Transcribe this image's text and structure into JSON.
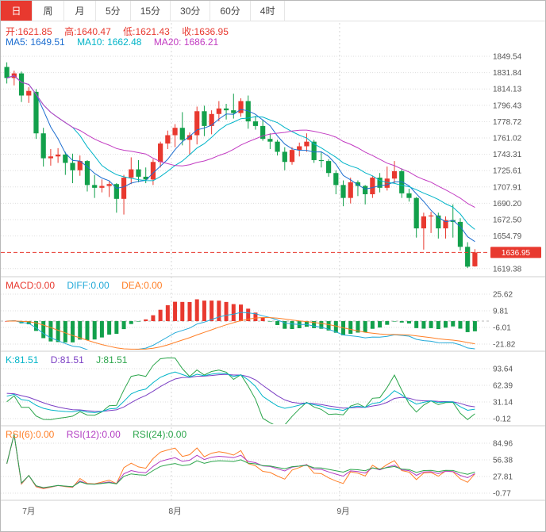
{
  "toolbar": {
    "tabs": [
      {
        "label": "日",
        "active": true
      },
      {
        "label": "周",
        "active": false
      },
      {
        "label": "月",
        "active": false
      },
      {
        "label": "5分",
        "active": false
      },
      {
        "label": "15分",
        "active": false
      },
      {
        "label": "30分",
        "active": false
      },
      {
        "label": "60分",
        "active": false
      },
      {
        "label": "4时",
        "active": false
      }
    ]
  },
  "info": {
    "ohlc_segments": [
      "开:1621.85",
      "高:1640.47",
      "低:1621.43",
      "收:1636.95"
    ],
    "ma_segments": [
      "MA5: 1649.51",
      "MA10: 1662.48",
      "MA20: 1686.21"
    ],
    "macd_segments": [
      "MACD:0.00",
      "DIFF:0.00",
      "DEA:0.00"
    ],
    "kdj_segments": [
      "K:81.51",
      "D:81.51",
      "J:81.51"
    ],
    "rsi_segments": [
      "RSI(6):0.00",
      "RSI(12):0.00",
      "RSI(24):0.00"
    ]
  },
  "chart_data": {
    "type": "candlestick",
    "title": "",
    "x_labels": [
      {
        "index": 3,
        "label": "7月",
        "grid": false
      },
      {
        "index": 23,
        "label": "8月",
        "grid": true
      },
      {
        "index": 46,
        "label": "9月",
        "grid": true
      }
    ],
    "panels": {
      "price": {
        "yticks": [
          1849.54,
          1831.84,
          1814.13,
          1796.43,
          1778.72,
          1761.02,
          1743.31,
          1725.61,
          1707.91,
          1690.2,
          1672.5,
          1654.79,
          1619.38
        ],
        "last_price": 1636.95,
        "ma_periods": [
          5,
          10,
          20
        ]
      },
      "macd": {
        "yticks": [
          25.62,
          9.81,
          -6.01,
          -21.82
        ],
        "params": [
          12,
          26,
          9
        ]
      },
      "kdj": {
        "yticks": [
          93.64,
          62.39,
          31.14,
          -0.12
        ],
        "params": [
          9,
          3,
          3
        ]
      },
      "rsi": {
        "yticks": [
          84.96,
          56.38,
          27.81,
          -0.77
        ],
        "params": [
          6,
          12,
          24
        ]
      }
    },
    "ohlc": [
      [
        1838,
        1843,
        1820,
        1826
      ],
      [
        1826,
        1834,
        1818,
        1831
      ],
      [
        1831,
        1833,
        1800,
        1807
      ],
      [
        1807,
        1816,
        1799,
        1812
      ],
      [
        1811,
        1814,
        1760,
        1766
      ],
      [
        1766,
        1772,
        1730,
        1739
      ],
      [
        1739,
        1749,
        1731,
        1741
      ],
      [
        1741,
        1750,
        1734,
        1743
      ],
      [
        1743,
        1746,
        1721,
        1734
      ],
      [
        1734,
        1744,
        1712,
        1726
      ],
      [
        1726,
        1742,
        1720,
        1736
      ],
      [
        1736,
        1737,
        1703,
        1710
      ],
      [
        1710,
        1721,
        1696,
        1707
      ],
      [
        1707,
        1716,
        1702,
        1709
      ],
      [
        1709,
        1714,
        1697,
        1711
      ],
      [
        1711,
        1712,
        1680,
        1695
      ],
      [
        1695,
        1721,
        1678,
        1718
      ],
      [
        1718,
        1740,
        1711,
        1727
      ],
      [
        1727,
        1737,
        1713,
        1719
      ],
      [
        1719,
        1729,
        1712,
        1716
      ],
      [
        1716,
        1738,
        1710,
        1735
      ],
      [
        1735,
        1757,
        1729,
        1755
      ],
      [
        1755,
        1769,
        1749,
        1764
      ],
      [
        1764,
        1776,
        1751,
        1772
      ],
      [
        1772,
        1789,
        1753,
        1759
      ],
      [
        1759,
        1767,
        1743,
        1764
      ],
      [
        1764,
        1795,
        1754,
        1790
      ],
      [
        1790,
        1796,
        1763,
        1774
      ],
      [
        1774,
        1791,
        1765,
        1787
      ],
      [
        1787,
        1801,
        1779,
        1793
      ],
      [
        1793,
        1798,
        1781,
        1791
      ],
      [
        1791,
        1809,
        1782,
        1788
      ],
      [
        1788,
        1804,
        1784,
        1801
      ],
      [
        1801,
        1807,
        1771,
        1779
      ],
      [
        1779,
        1785,
        1770,
        1774
      ],
      [
        1774,
        1781,
        1758,
        1760
      ],
      [
        1760,
        1766,
        1749,
        1757
      ],
      [
        1757,
        1759,
        1742,
        1746
      ],
      [
        1746,
        1751,
        1726,
        1735
      ],
      [
        1735,
        1751,
        1732,
        1748
      ],
      [
        1748,
        1756,
        1741,
        1752
      ],
      [
        1752,
        1766,
        1746,
        1757
      ],
      [
        1757,
        1759,
        1734,
        1737
      ],
      [
        1737,
        1746,
        1729,
        1736
      ],
      [
        1736,
        1738,
        1719,
        1723
      ],
      [
        1723,
        1726,
        1700,
        1710
      ],
      [
        1710,
        1715,
        1687,
        1696
      ],
      [
        1696,
        1718,
        1690,
        1713
      ],
      [
        1713,
        1715,
        1698,
        1709
      ],
      [
        1709,
        1710,
        1689,
        1700
      ],
      [
        1700,
        1720,
        1696,
        1718
      ],
      [
        1718,
        1723,
        1702,
        1707
      ],
      [
        1707,
        1730,
        1704,
        1717
      ],
      [
        1717,
        1736,
        1712,
        1725
      ],
      [
        1725,
        1728,
        1696,
        1701
      ],
      [
        1701,
        1706,
        1692,
        1696
      ],
      [
        1696,
        1697,
        1653,
        1663
      ],
      [
        1663,
        1680,
        1640,
        1676
      ],
      [
        1676,
        1681,
        1658,
        1677
      ],
      [
        1677,
        1680,
        1652,
        1663
      ],
      [
        1663,
        1676,
        1652,
        1672
      ],
      [
        1672,
        1689,
        1653,
        1670
      ],
      [
        1670,
        1674,
        1639,
        1643
      ],
      [
        1643,
        1648,
        1620,
        1621.5
      ],
      [
        1621.85,
        1640.47,
        1621.43,
        1636.95
      ]
    ],
    "colors": {
      "up": "#e8392f",
      "down": "#12a04b",
      "ma5": "#1d6ed0",
      "ma10": "#00b4c8",
      "ma20": "#c23bc2",
      "macd_label": "#e8392f",
      "diff": "#22a9d8",
      "dea": "#ff7f27",
      "k": "#00b4c8",
      "d": "#7b3fc4",
      "j": "#2ba54b",
      "rsi6": "#ff7f27",
      "rsi12": "#b23bc2",
      "rsi24": "#2ba54b",
      "badge_bg": "#e8392f",
      "axis_text": "#555555",
      "grid": "#dedede"
    }
  }
}
